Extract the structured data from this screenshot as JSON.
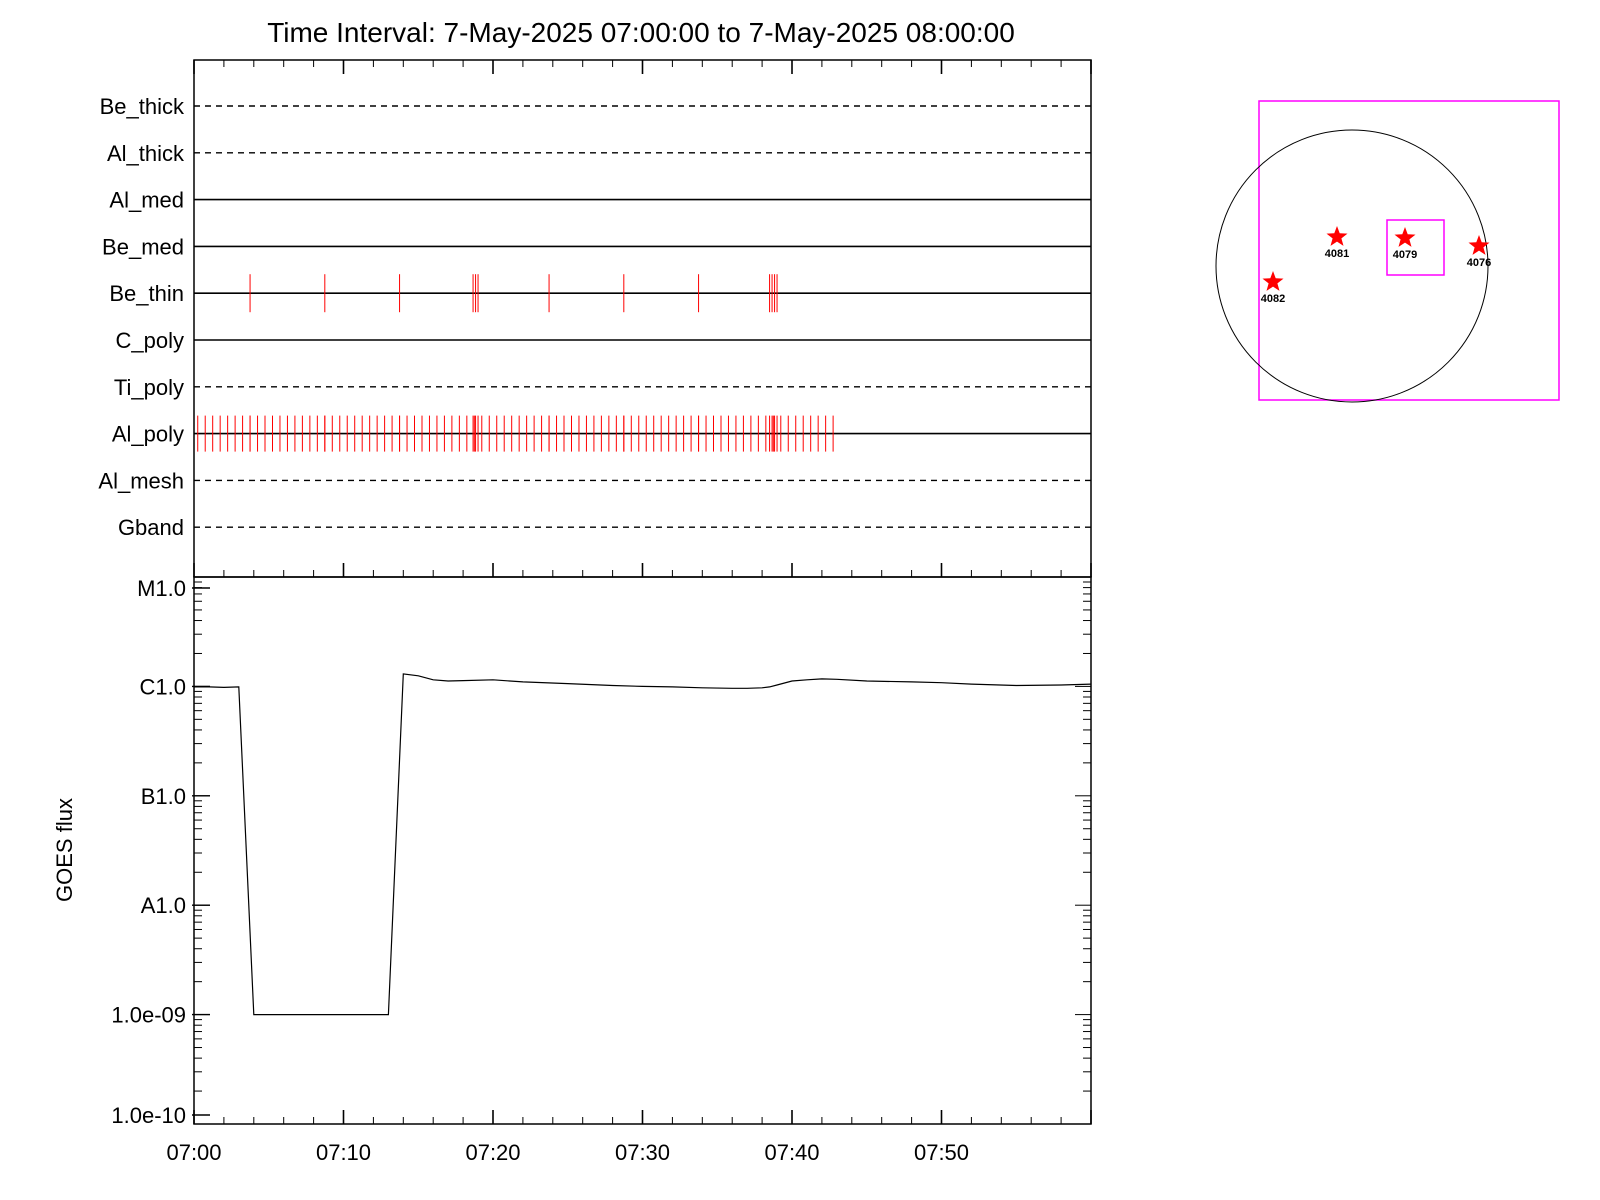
{
  "title": "Time Interval:  7-May-2025 07:00:00 to  7-May-2025 08:00:00",
  "colors": {
    "axis": "#000000",
    "event_marks": "#ff0000",
    "field_of_view": "#ff00ff",
    "disk": "#000000",
    "star": "#ff0000"
  },
  "chart_data": [
    {
      "type": "line",
      "name": "filter timeline",
      "x_range": [
        "07:00",
        "08:00"
      ],
      "channels": [
        {
          "label": "Be_thick",
          "style": "dashed",
          "events": []
        },
        {
          "label": "Al_thick",
          "style": "dashed",
          "events": []
        },
        {
          "label": "Al_med",
          "style": "solid",
          "events": []
        },
        {
          "label": "Be_med",
          "style": "solid",
          "events": []
        },
        {
          "label": "Be_thin",
          "style": "solid",
          "events": [
            "07:03:45",
            "07:08:45",
            "07:13:45",
            "07:18:40",
            "07:18:50",
            "07:19:00",
            "07:23:45",
            "07:28:45",
            "07:33:45",
            "07:38:30",
            "07:38:40",
            "07:38:50",
            "07:39:00"
          ]
        },
        {
          "label": "C_poly",
          "style": "solid",
          "events": []
        },
        {
          "label": "Ti_poly",
          "style": "dashed",
          "events": []
        },
        {
          "label": "Al_poly",
          "style": "solid",
          "events_every_seconds": 30,
          "events_start": "07:00:15",
          "events_end": "07:42:45",
          "extra_events": [
            "07:03:45",
            "07:08:45",
            "07:13:45",
            "07:18:40",
            "07:18:50",
            "07:19:00",
            "07:23:45",
            "07:28:45",
            "07:33:45",
            "07:38:30",
            "07:38:40",
            "07:38:50",
            "07:39:00"
          ]
        },
        {
          "label": "Al_mesh",
          "style": "dashed",
          "events": []
        },
        {
          "label": "Gband",
          "style": "dashed",
          "events": []
        }
      ]
    },
    {
      "type": "line",
      "ylabel": "GOES flux",
      "yscale": "log",
      "ylim": [
        1e-10,
        1e-05
      ],
      "y_ticks": [
        {
          "value": 1e-10,
          "label": "1.0e-10"
        },
        {
          "value": 1e-09,
          "label": "1.0e-09"
        },
        {
          "value": 1e-08,
          "label": "A1.0"
        },
        {
          "value": 1e-07,
          "label": "B1.0"
        },
        {
          "value": 1e-06,
          "label": "C1.0"
        },
        {
          "value": 1e-05,
          "label": "M1.0"
        }
      ],
      "x_ticks": [
        "07:00",
        "07:10",
        "07:20",
        "07:30",
        "07:40",
        "07:50"
      ],
      "x_minutes_range": [
        0,
        60
      ],
      "series": [
        {
          "x_minutes": [
            0,
            1,
            2,
            3.0,
            4.0,
            13.0,
            14.0,
            15,
            16,
            17,
            18,
            20,
            22,
            25,
            28,
            30,
            32,
            34,
            36,
            37,
            38,
            38.5,
            39,
            40,
            41,
            42,
            43,
            45,
            48,
            50,
            52,
            55,
            58,
            60
          ],
          "values": [
            9.9e-07,
            9.9e-07,
            9.8e-07,
            9.9e-07,
            1e-09,
            1e-09,
            1.3e-06,
            1.25e-06,
            1.15e-06,
            1.12e-06,
            1.13e-06,
            1.15e-06,
            1.1e-06,
            1.06e-06,
            1.02e-06,
            1e-06,
            9.9e-07,
            9.7e-07,
            9.6e-07,
            9.6e-07,
            9.7e-07,
            9.9e-07,
            1.03e-06,
            1.12e-06,
            1.15e-06,
            1.17e-06,
            1.16e-06,
            1.12e-06,
            1.1e-06,
            1.08e-06,
            1.05e-06,
            1.02e-06,
            1.03e-06,
            1.05e-06
          ]
        }
      ]
    }
  ],
  "disk_map": {
    "regions": [
      {
        "label": "4082"
      },
      {
        "label": "4081"
      },
      {
        "label": "4079"
      },
      {
        "label": "4076"
      }
    ]
  }
}
